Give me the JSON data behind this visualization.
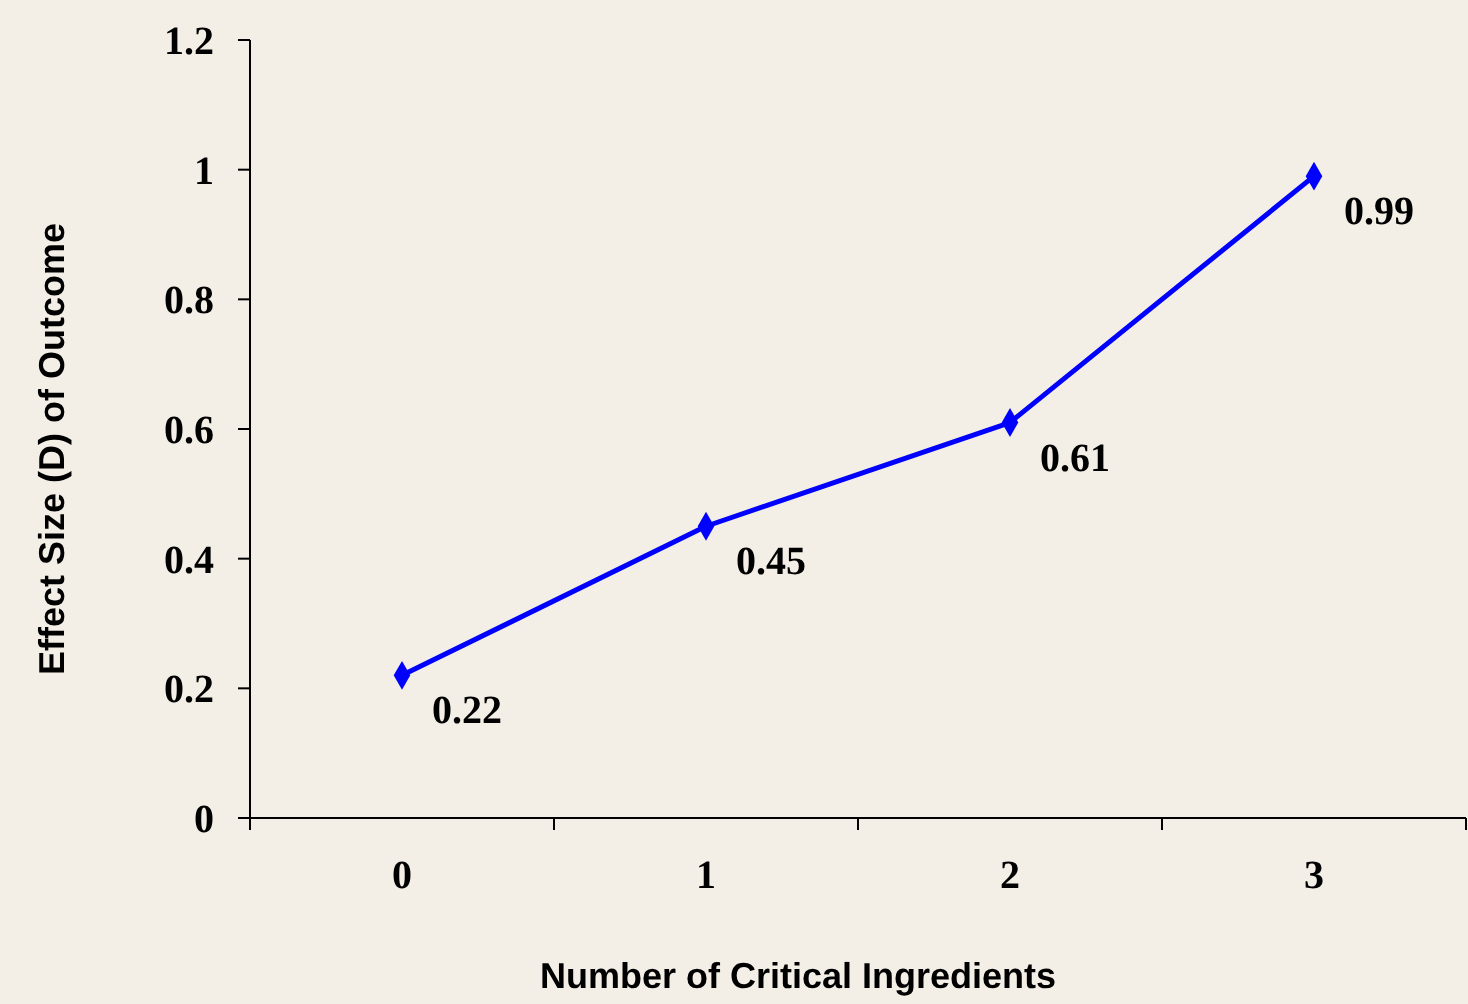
{
  "chart_data": {
    "type": "line",
    "xlabel": "Number of Critical Ingredients",
    "ylabel": "Effect Size (D) of Outcome",
    "categories": [
      "0",
      "1",
      "2",
      "3"
    ],
    "series": [
      {
        "color": "#0000ff",
        "values": [
          0.22,
          0.45,
          0.61,
          0.99
        ]
      }
    ],
    "ylim": [
      0,
      1.2
    ],
    "yticks": [
      0,
      0.2,
      0.4,
      0.6,
      0.8,
      1,
      1.2
    ],
    "grid": false,
    "marker": "diamond",
    "line_style": "solid",
    "data_labels": true
  }
}
